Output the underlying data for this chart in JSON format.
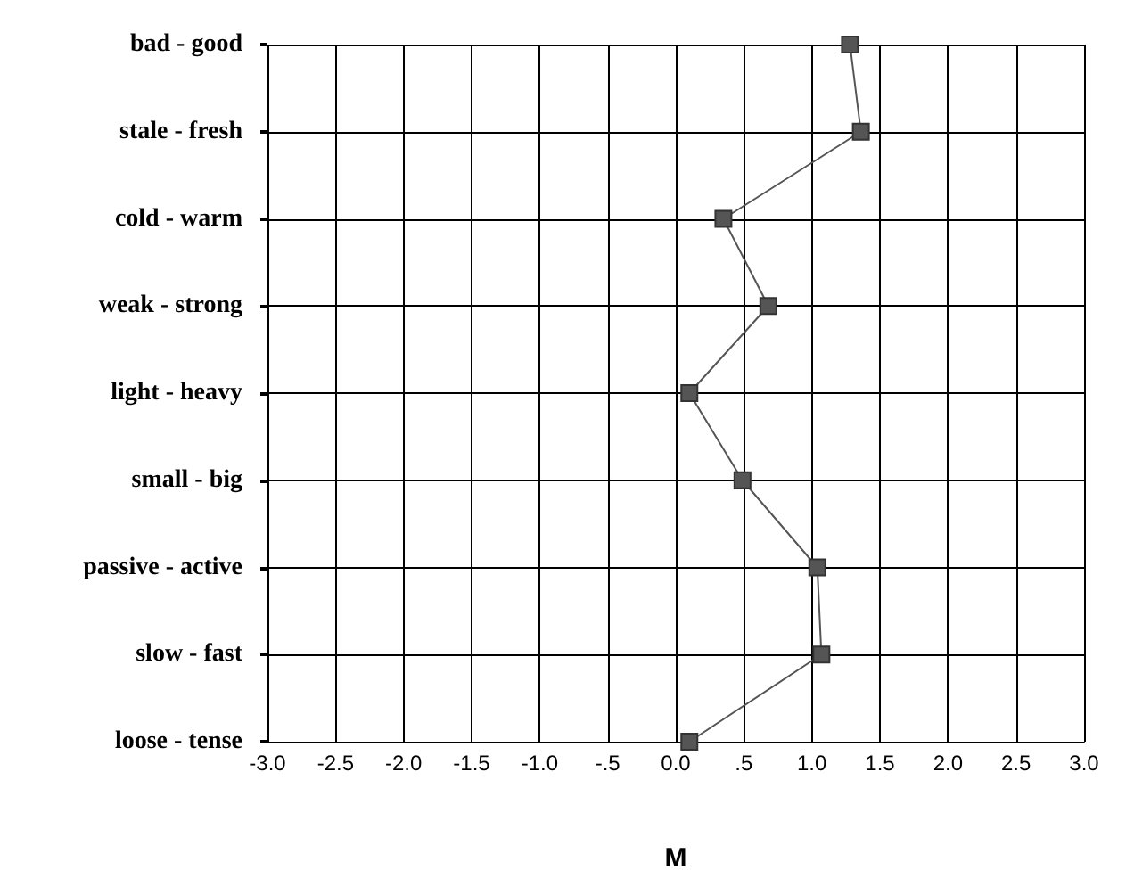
{
  "chart_data": {
    "type": "line",
    "orientation": "horizontal",
    "xlabel": "M",
    "categories": [
      "bad - good",
      "stale - fresh",
      "cold - warm",
      "weak - strong",
      "light - heavy",
      "small - big",
      "passive - active",
      "slow - fast",
      "loose - tense"
    ],
    "series": [
      {
        "color": "#555555",
        "values": [
          1.28,
          1.36,
          0.35,
          0.68,
          0.1,
          0.49,
          1.04,
          1.07,
          0.1
        ]
      }
    ],
    "xlim": [
      -3,
      3
    ],
    "xticks": [
      {
        "value": -3,
        "label": "-3.0"
      },
      {
        "value": -2.5,
        "label": "-2.5"
      },
      {
        "value": -2,
        "label": "-2.0"
      },
      {
        "value": -1.5,
        "label": "-1.5"
      },
      {
        "value": -1,
        "label": "-1.0"
      },
      {
        "value": -0.5,
        "label": "-.5"
      },
      {
        "value": 0,
        "label": "0.0"
      },
      {
        "value": 0.5,
        "label": ".5"
      },
      {
        "value": 1,
        "label": "1.0"
      },
      {
        "value": 1.5,
        "label": "1.5"
      },
      {
        "value": 2,
        "label": "2.0"
      },
      {
        "value": 2.5,
        "label": "2.5"
      },
      {
        "value": 3,
        "label": "3.0"
      }
    ],
    "grid": true,
    "marker": "square",
    "line_style": "solid"
  }
}
